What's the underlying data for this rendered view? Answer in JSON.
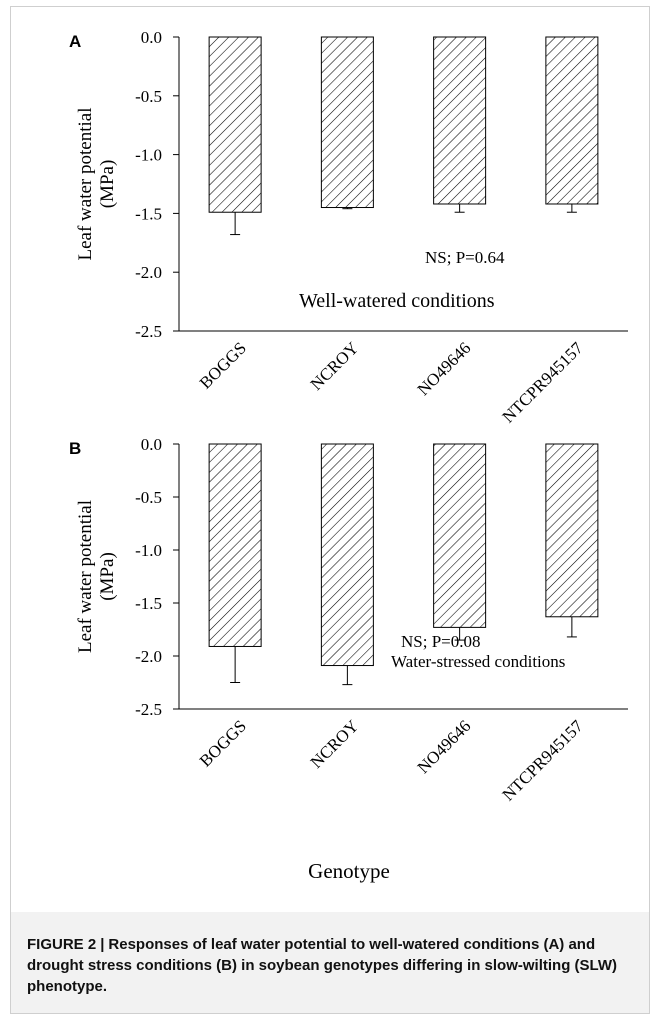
{
  "chart_data": [
    {
      "type": "bar",
      "panel_label": "A",
      "categories": [
        "BOGGS",
        "NCROY",
        "NO49646",
        "NTCPR945157"
      ],
      "values": [
        -1.49,
        -1.45,
        -1.42,
        -1.42
      ],
      "errors": [
        0.19,
        0.01,
        0.07,
        0.07
      ],
      "ylabel_line1": "Leaf water potential",
      "ylabel_line2": "(MPa)",
      "xlabel": "",
      "ylim": [
        -2.5,
        0.0
      ],
      "yticks": [
        "0.0",
        "-0.5",
        "-1.0",
        "-1.5",
        "-2.0",
        "-2.5"
      ],
      "annotation_stat": "NS; P=0.64",
      "annotation_condition": "Well-watered conditions",
      "fill_pattern": "diagonal-hatch",
      "grid": false
    },
    {
      "type": "bar",
      "panel_label": "B",
      "categories": [
        "BOGGS",
        "NCROY",
        "NO49646",
        "NTCPR945157"
      ],
      "values": [
        -1.91,
        -2.09,
        -1.73,
        -1.63
      ],
      "errors": [
        0.34,
        0.18,
        0.12,
        0.19
      ],
      "ylabel_line1": "Leaf water potential",
      "ylabel_line2": "(MPa)",
      "xlabel": "Genotype",
      "ylim": [
        -2.5,
        0.0
      ],
      "yticks": [
        "0.0",
        "-0.5",
        "-1.0",
        "-1.5",
        "-2.0",
        "-2.5"
      ],
      "annotation_stat": "NS; P=0.08",
      "annotation_condition": "Water-stressed conditions",
      "fill_pattern": "diagonal-hatch",
      "grid": false
    }
  ],
  "caption": {
    "label": "FIGURE 2",
    "separator": "|",
    "text": "Responses of leaf water potential to well-watered conditions (A) and drought stress conditions (B) in soybean genotypes differing in slow-wilting (SLW) phenotype."
  },
  "colors": {
    "bar_stroke": "#000000",
    "hatch": "#000000",
    "caption_bg": "#f2f2f2"
  }
}
